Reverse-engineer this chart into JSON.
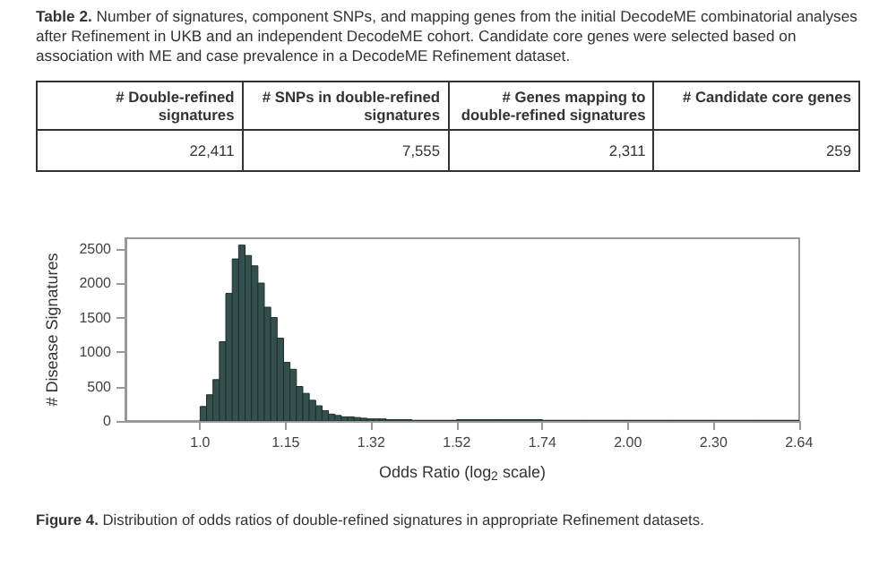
{
  "chart_data": [
    {
      "type": "other",
      "title": "Table 2. Number of signatures, component SNPs, and mapping genes from the initial DecodeME combinatorial analyses after Refinement in UKB and an independent DecodeME cohort. Candidate core genes were selected based on association with ME and case prevalence in a DecodeME Refinement dataset.",
      "categories": [
        "# Double-refined signatures",
        "# SNPs in double-refined signatures",
        "# Genes mapping to double-refined signatures",
        "# Candidate core genes"
      ],
      "values": [
        22411,
        7555,
        2311,
        259
      ],
      "value_labels": [
        "22,411",
        "7,555",
        "2,311",
        "259"
      ]
    },
    {
      "type": "histogram",
      "xlabel": "Odds Ratio (log$_{2}$ scale)",
      "ylabel": "# Disease Signatures",
      "color": "#34504d",
      "bins": [
        1.0,
        1.01045,
        1.02102,
        1.0317,
        1.04249,
        1.0534,
        1.06442,
        1.07555,
        1.0868,
        1.09817,
        1.10957,
        1.12118,
        1.1329,
        1.14475,
        1.15673,
        1.16883,
        1.18105,
        1.19341,
        1.20589,
        1.2185,
        1.23114,
        1.24402,
        1.25703,
        1.27018,
        1.28346,
        1.29684,
        1.31041,
        1.32412,
        1.33797,
        1.35196,
        1.36604,
        1.3803,
        1.3947,
        1.4093,
        1.4241,
        1.4389,
        1.454,
        1.4692,
        1.4845,
        1.5001,
        1.5157,
        1.6245,
        1.7411,
        1.8661,
        2.0,
        2.1435,
        2.2974,
        2.4623,
        2.639
      ],
      "values": [
        210,
        380,
        600,
        1150,
        1850,
        2350,
        2550,
        2400,
        2250,
        2000,
        1650,
        1500,
        1200,
        850,
        750,
        500,
        400,
        300,
        220,
        150,
        100,
        80,
        60,
        60,
        50,
        40,
        30,
        30,
        30,
        20,
        20,
        20,
        20,
        10,
        10,
        10,
        10,
        10,
        10,
        10,
        20,
        20,
        10,
        10,
        10,
        10,
        10,
        10
      ],
      "log": "x",
      "xlim": [
        0.886,
        2.64
      ],
      "xticks": [
        {
          "value": 1,
          "label": "1.0"
        },
        {
          "value": 1.1487,
          "label": "1.15"
        },
        {
          "value": 1.3195,
          "label": "1.32"
        },
        {
          "value": 1.5157,
          "label": "1.52"
        },
        {
          "value": 1.7411,
          "label": "1.74"
        },
        {
          "value": 2,
          "label": "2.00"
        },
        {
          "value": 2.2974,
          "label": "2.30"
        },
        {
          "value": 2.639,
          "label": "2.64"
        }
      ],
      "ylim": [
        0,
        2650
      ],
      "yticks": [
        0,
        500,
        1000,
        1500,
        2000,
        2500
      ],
      "grid": false,
      "annotations": [
        "Figure 4. Distribution of odds ratios of double-refined signatures in appropriate Refinement datasets."
      ]
    }
  ]
}
